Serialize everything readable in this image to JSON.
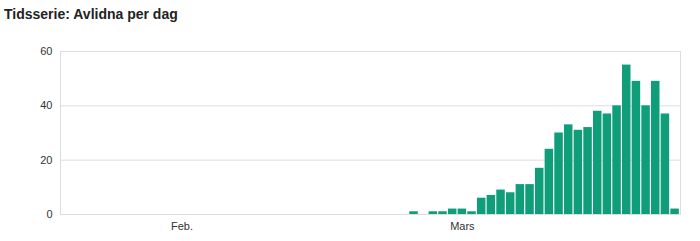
{
  "chart_data": {
    "type": "bar",
    "title": "Tidsserie: Avlidna per dag",
    "categories": [
      null,
      null,
      null,
      null,
      null,
      null,
      null,
      null,
      null,
      null,
      null,
      null,
      "Feb.",
      null,
      null,
      null,
      null,
      null,
      null,
      null,
      null,
      null,
      null,
      null,
      null,
      null,
      null,
      null,
      null,
      null,
      null,
      null,
      null,
      null,
      null,
      null,
      null,
      null,
      null,
      null,
      null,
      "Mars",
      null,
      null,
      null,
      null,
      null,
      null,
      null,
      null,
      null,
      null,
      null,
      null,
      null,
      null,
      null,
      null,
      null,
      null,
      null,
      null,
      null,
      null
    ],
    "values": [
      0,
      0,
      0,
      0,
      0,
      0,
      0,
      0,
      0,
      0,
      0,
      0,
      0,
      0,
      0,
      0,
      0,
      0,
      0,
      0,
      0,
      0,
      0,
      0,
      0,
      0,
      0,
      0,
      0,
      0,
      0,
      0,
      0,
      0,
      0,
      0,
      1,
      0,
      1,
      1,
      2,
      2,
      1,
      6,
      7,
      9,
      8,
      11,
      11,
      17,
      24,
      30,
      33,
      31,
      32,
      38,
      37,
      40,
      55,
      49,
      40,
      49,
      37,
      2
    ],
    "color": "#0f9d7a",
    "ylim": [
      0,
      60
    ],
    "yticks": [
      0,
      20,
      40,
      60
    ],
    "grid": true
  }
}
